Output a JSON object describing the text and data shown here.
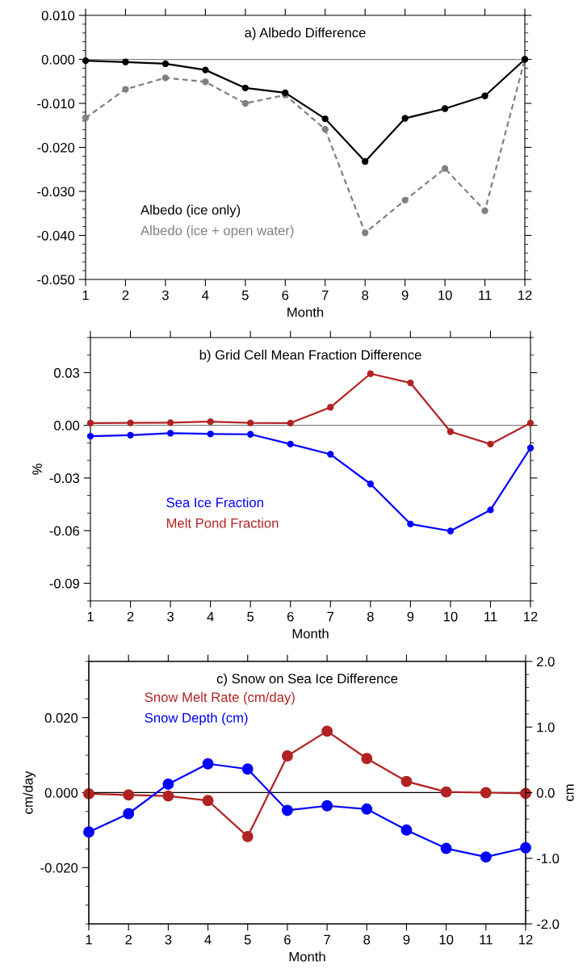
{
  "chart_data": [
    {
      "type": "line",
      "title": "a) Albedo Difference",
      "xlabel": "Month",
      "x": [
        1,
        2,
        3,
        4,
        5,
        6,
        7,
        8,
        9,
        10,
        11,
        12
      ],
      "xlim": [
        1,
        12
      ],
      "xticks": [
        1,
        2,
        3,
        4,
        5,
        6,
        7,
        8,
        9,
        10,
        11,
        12
      ],
      "ylim": [
        -0.05,
        0.01
      ],
      "yticks": [
        {
          "value": -0.05,
          "label": "-0.050"
        },
        {
          "value": -0.04,
          "label": "-0.040"
        },
        {
          "value": -0.03,
          "label": "-0.030"
        },
        {
          "value": -0.02,
          "label": "-0.020"
        },
        {
          "value": -0.01,
          "label": "-0.010"
        },
        {
          "value": 0,
          "label": "0.000"
        },
        {
          "value": 0.01,
          "label": "0.010"
        }
      ],
      "ref_lines": [
        {
          "axis": "y",
          "value": 0,
          "color": "#808080"
        }
      ],
      "marker": "circle",
      "legend": "bottom left",
      "grid": false,
      "series": [
        {
          "name": "Albedo (ice only)",
          "color": "#000000",
          "line_style": "solid",
          "values": [
            -0.0003,
            -0.0006,
            -0.001,
            -0.0024,
            -0.0065,
            -0.0076,
            -0.0135,
            -0.0232,
            -0.0134,
            -0.0112,
            -0.0083,
            0.0
          ]
        },
        {
          "name": "Albedo (ice + open water)",
          "color": "#808080",
          "line_style": "dashed",
          "values": [
            -0.0133,
            -0.0068,
            -0.0042,
            -0.0051,
            -0.01,
            -0.0081,
            -0.0159,
            -0.0394,
            -0.032,
            -0.0248,
            -0.0344,
            0.0
          ]
        }
      ]
    },
    {
      "type": "line",
      "title": "b) Grid Cell Mean Fraction Difference",
      "xlabel": "Month",
      "ylabel": "%",
      "x": [
        1,
        2,
        3,
        4,
        5,
        6,
        7,
        8,
        9,
        10,
        11,
        12
      ],
      "xlim": [
        1,
        12
      ],
      "xticks": [
        1,
        2,
        3,
        4,
        5,
        6,
        7,
        8,
        9,
        10,
        11,
        12
      ],
      "ylim": [
        -0.1,
        0.05
      ],
      "yticks": [
        {
          "value": -0.09,
          "label": "-0.09"
        },
        {
          "value": -0.06,
          "label": "-0.06"
        },
        {
          "value": -0.03,
          "label": "-0.03"
        },
        {
          "value": 0,
          "label": "0.00"
        },
        {
          "value": 0.03,
          "label": "0.03"
        }
      ],
      "ref_lines": [
        {
          "axis": "y",
          "value": 0,
          "color": "#808080"
        }
      ],
      "marker": "circle",
      "legend": "left",
      "grid": false,
      "series": [
        {
          "name": "Sea Ice Fraction",
          "color": "#0000ff",
          "line_style": "solid",
          "values": [
            -0.0062,
            -0.0056,
            -0.0045,
            -0.0049,
            -0.0051,
            -0.0107,
            -0.0165,
            -0.0334,
            -0.0562,
            -0.0602,
            -0.0482,
            -0.0129
          ]
        },
        {
          "name": "Melt Pond Fraction",
          "color": "#b22222",
          "line_style": "solid",
          "values": [
            0.0013,
            0.0014,
            0.0015,
            0.0021,
            0.0014,
            0.0013,
            0.0103,
            0.0294,
            0.0242,
            -0.0036,
            -0.0107,
            0.0013
          ]
        }
      ]
    },
    {
      "type": "line",
      "title": "c) Snow on Sea Ice Difference",
      "xlabel": "Month",
      "ylabel": "cm/day",
      "y2label": "cm",
      "x": [
        1,
        2,
        3,
        4,
        5,
        6,
        7,
        8,
        9,
        10,
        11,
        12
      ],
      "xlim": [
        1,
        12
      ],
      "xticks": [
        1,
        2,
        3,
        4,
        5,
        6,
        7,
        8,
        9,
        10,
        11,
        12
      ],
      "ylim": [
        -0.035,
        0.035
      ],
      "yticks": [
        {
          "value": -0.02,
          "label": "-0.020"
        },
        {
          "value": 0,
          "label": "0.000"
        },
        {
          "value": 0.02,
          "label": "0.020"
        }
      ],
      "y2lim": [
        -2.0,
        2.0
      ],
      "y2ticks": [
        {
          "value": -2,
          "label": "-2.0"
        },
        {
          "value": -1,
          "label": "-1.0"
        },
        {
          "value": 0,
          "label": "0.0"
        },
        {
          "value": 1,
          "label": "1.0"
        },
        {
          "value": 2,
          "label": "2.0"
        }
      ],
      "ref_lines": [
        {
          "axis": "y",
          "value": 0,
          "color": "#000000"
        }
      ],
      "marker": "circle",
      "legend": "top left",
      "grid": false,
      "series": [
        {
          "name": "Snow Melt Rate (cm/day)",
          "color": "#b22222",
          "line_style": "solid",
          "values": [
            -0.0003,
            -0.0006,
            -0.0009,
            -0.0021,
            -0.0117,
            0.0098,
            0.0164,
            0.0091,
            0.003,
            0.0002,
            0.0,
            -0.0002
          ]
        },
        {
          "name": "Snow Depth (cm)",
          "color": "#0000ff",
          "line_style": "solid",
          "axis": "y2",
          "values": [
            -0.6,
            -0.32,
            0.13,
            0.44,
            0.36,
            -0.27,
            -0.2,
            -0.25,
            -0.57,
            -0.85,
            -0.98,
            -0.84
          ]
        }
      ]
    }
  ]
}
